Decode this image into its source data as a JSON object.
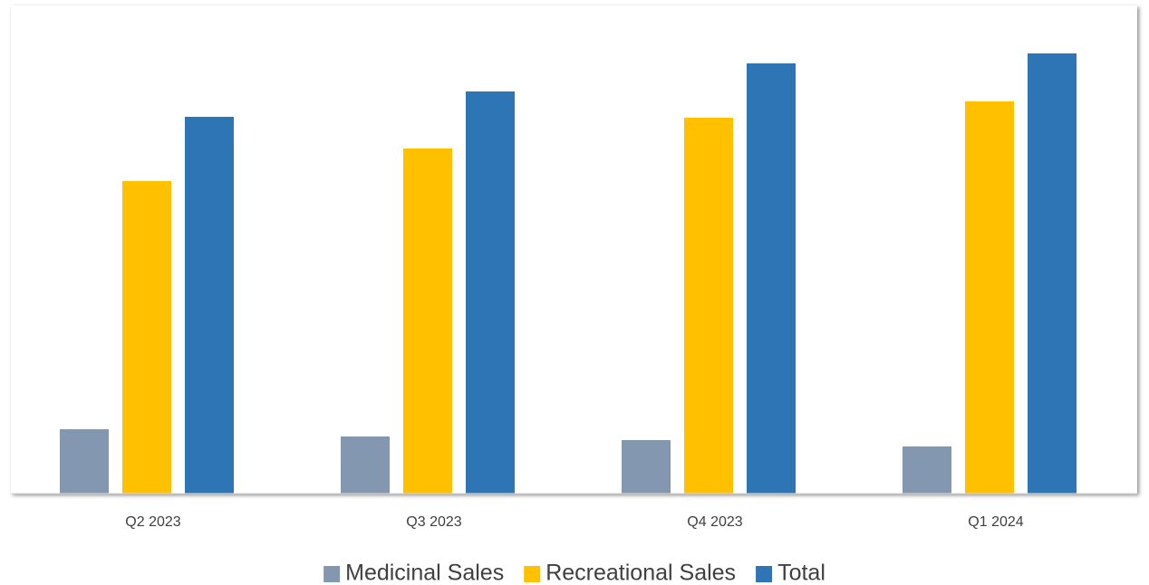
{
  "chart_data": {
    "type": "bar",
    "categories": [
      "Q2 2023",
      "Q3 2023",
      "Q4 2023",
      "Q1 2024"
    ],
    "series": [
      {
        "name": "Medicinal Sales",
        "color": "#8497b0",
        "values": [
          71,
          63,
          59,
          52
        ]
      },
      {
        "name": "Recreational Sales",
        "color": "#ffc000",
        "values": [
          345,
          381,
          415,
          433
        ]
      },
      {
        "name": "Total",
        "color": "#2e75b6",
        "values": [
          416,
          444,
          475,
          486
        ]
      }
    ],
    "ylim": [
      0,
      500
    ]
  }
}
